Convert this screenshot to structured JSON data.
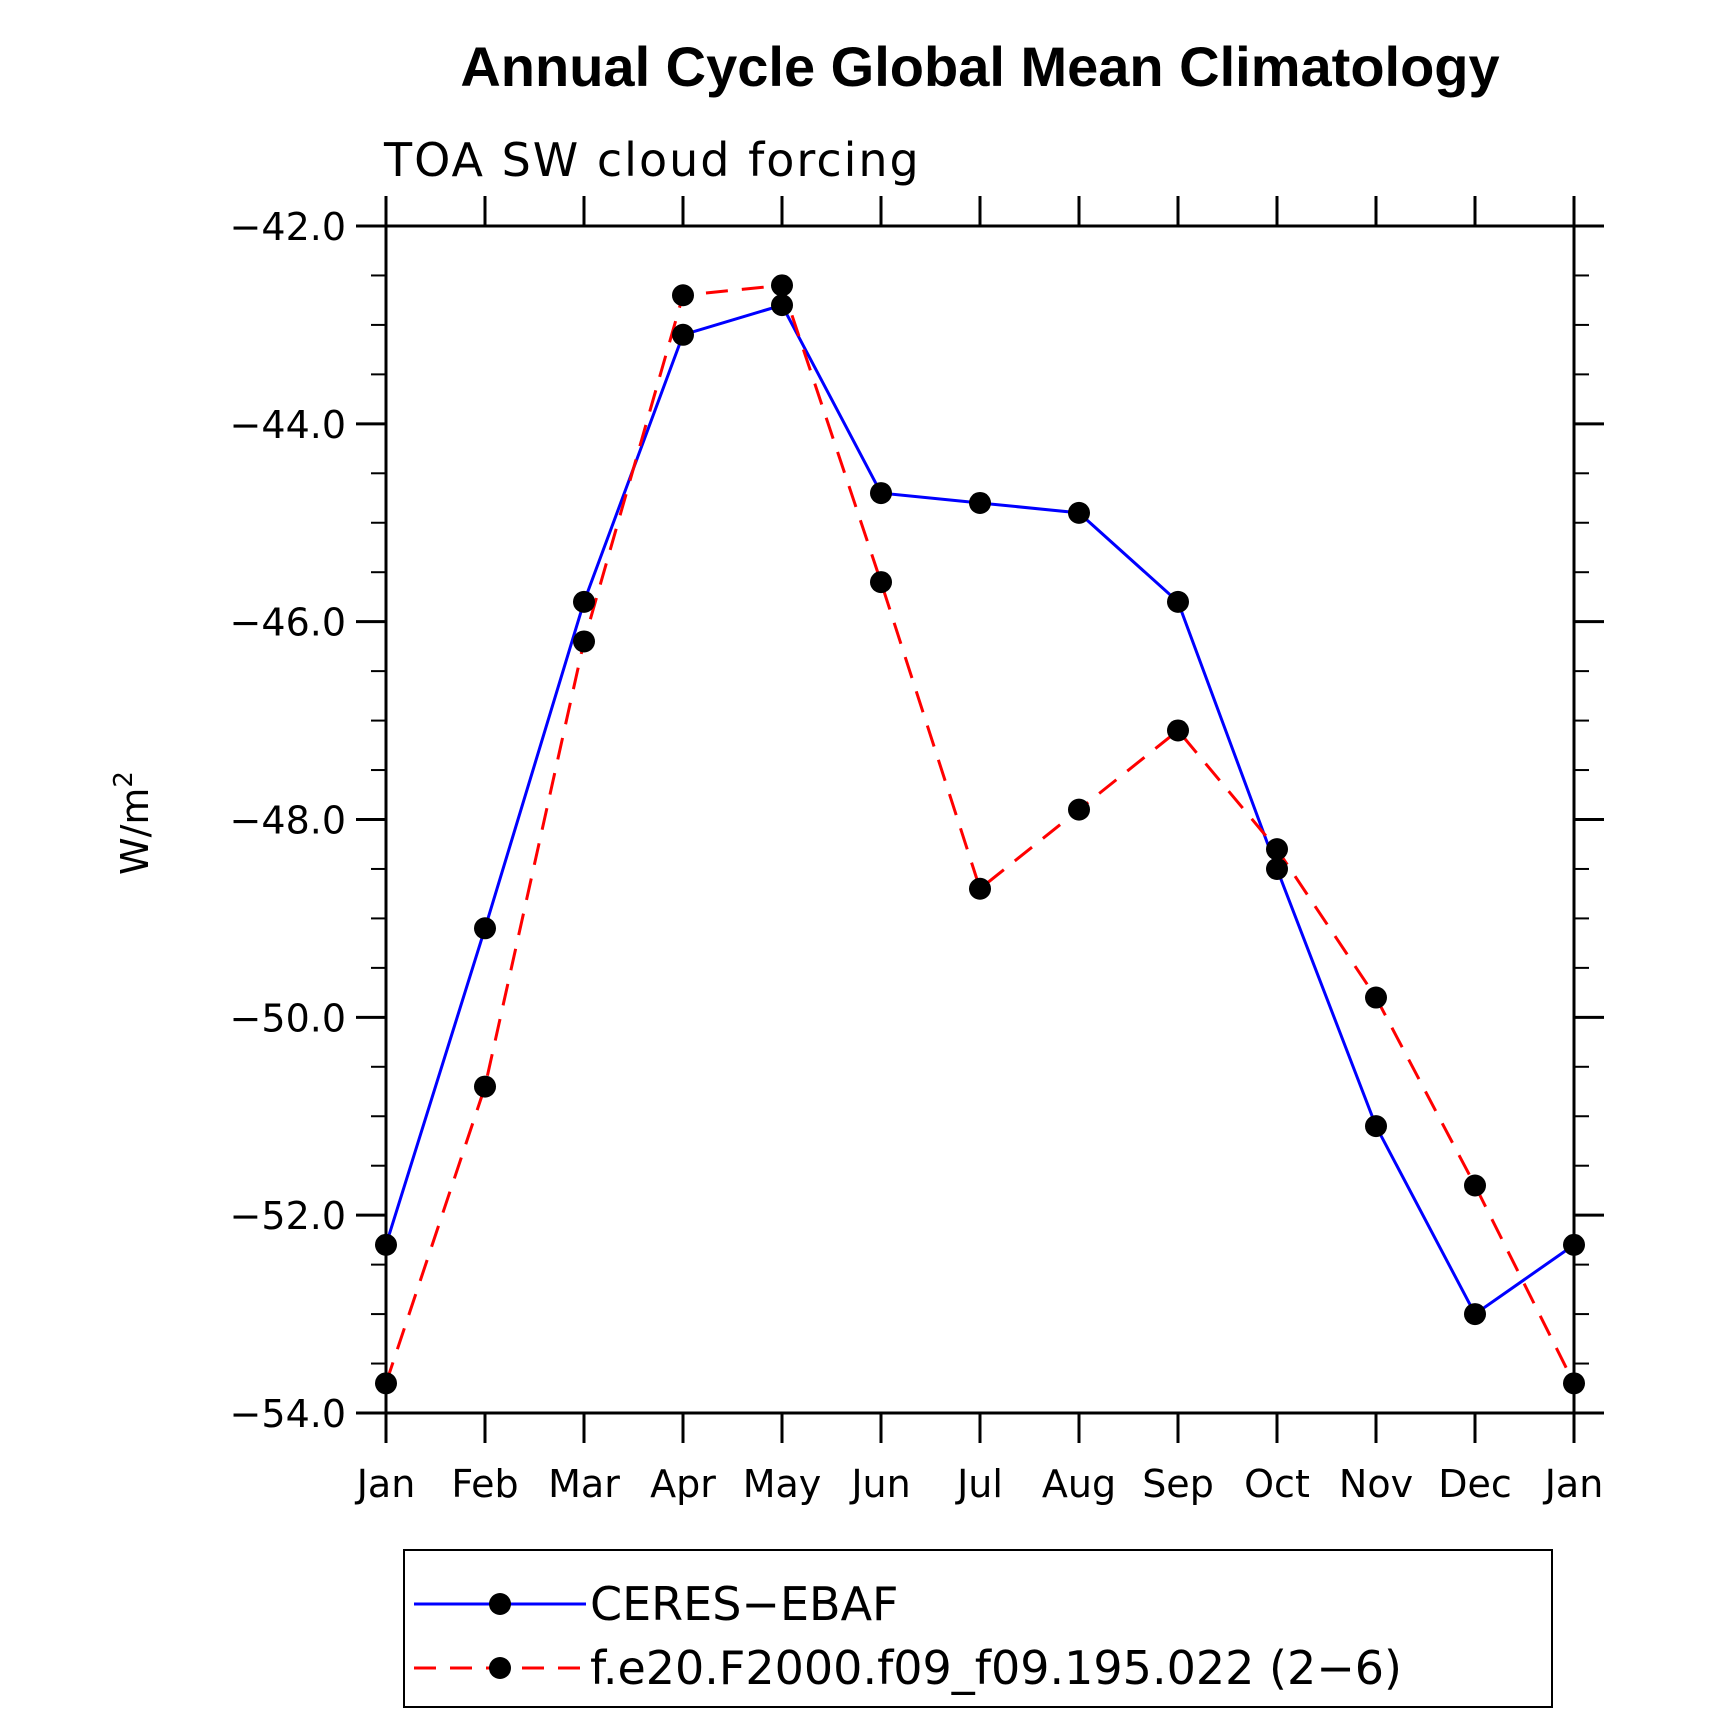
{
  "chart_data": {
    "type": "line",
    "title": "Annual Cycle Global Mean Climatology",
    "subtitle": "TOA SW cloud forcing",
    "xlabel": "",
    "ylabel": "W/m",
    "ylabel_sup": "2",
    "categories": [
      "Jan",
      "Feb",
      "Mar",
      "Apr",
      "May",
      "Jun",
      "Jul",
      "Aug",
      "Sep",
      "Oct",
      "Nov",
      "Dec",
      "Jan"
    ],
    "ylim": [
      -54.0,
      -42.0
    ],
    "yticks": [
      -42.0,
      -44.0,
      -46.0,
      -48.0,
      -50.0,
      -52.0,
      -54.0
    ],
    "ytick_labels": [
      "−42.0",
      "−44.0",
      "−46.0",
      "−48.0",
      "−50.0",
      "−52.0",
      "−54.0"
    ],
    "y_minor_step": 0.5,
    "grid": false,
    "legend_position": "bottom",
    "series": [
      {
        "name": "CERES−EBAF",
        "color": "#0000ff",
        "dash": "solid",
        "marker": "filled-circle",
        "values": [
          -52.3,
          -49.1,
          -45.8,
          -43.1,
          -42.8,
          -44.7,
          -44.8,
          -44.9,
          -45.8,
          -48.5,
          -51.1,
          -53.0,
          -52.3
        ]
      },
      {
        "name": "f.e20.F2000.f09_f09.195.022 (2−6)",
        "color": "#ff0000",
        "dash": "dashed",
        "marker": "filled-circle",
        "values": [
          -53.7,
          -50.7,
          -46.2,
          -42.7,
          -42.6,
          -45.6,
          -48.7,
          -47.9,
          -47.1,
          -48.3,
          -49.8,
          -51.7,
          -53.7
        ]
      }
    ]
  }
}
